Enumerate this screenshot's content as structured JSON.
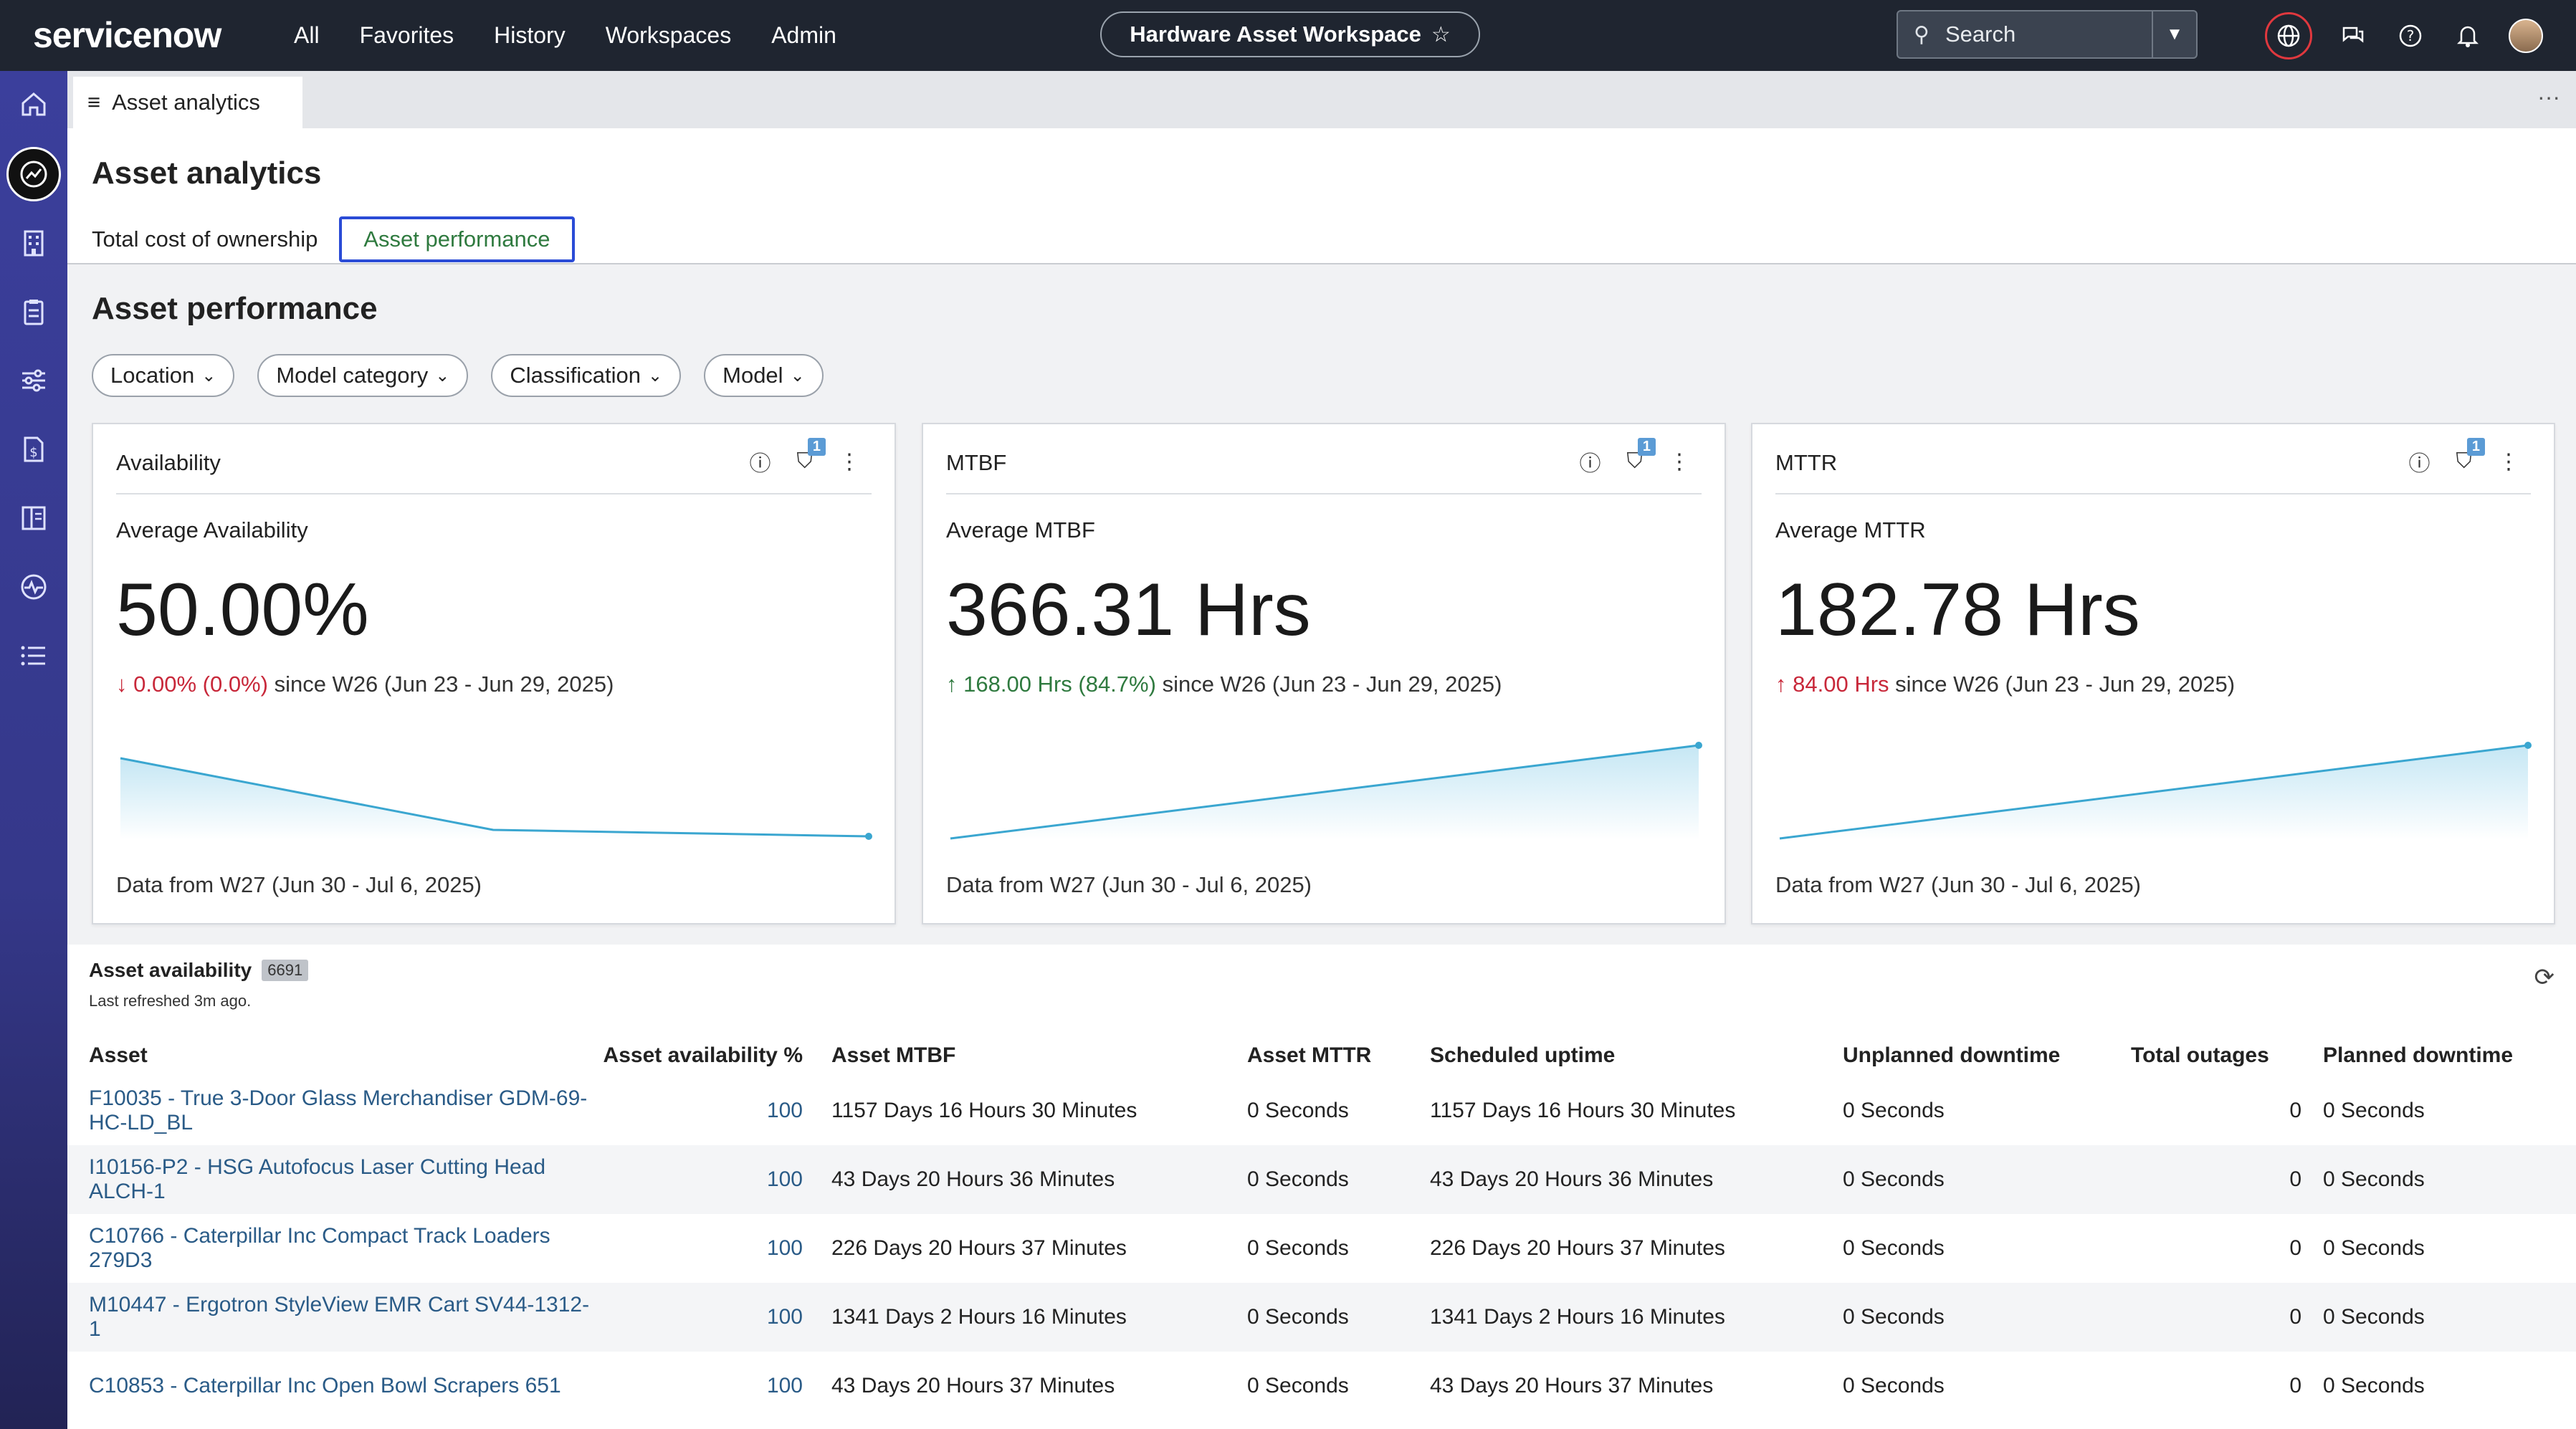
{
  "topbar": {
    "logo": "servicenow",
    "nav": [
      "All",
      "Favorites",
      "History",
      "Workspaces",
      "Admin"
    ],
    "workspace_title": "Hardware Asset Workspace",
    "search_placeholder": "Search"
  },
  "tabstrip": {
    "tab_label": "Asset analytics"
  },
  "header": {
    "title": "Asset analytics",
    "tabs": [
      "Total cost of ownership",
      "Asset performance"
    ]
  },
  "section": {
    "title": "Asset performance",
    "filters": [
      "Location",
      "Model category",
      "Classification",
      "Model"
    ]
  },
  "cards": [
    {
      "title": "Availability",
      "filter_count": "1",
      "label": "Average Availability",
      "value": "50.00%",
      "delta_arrow": "↓",
      "delta": "0.00% (0.0%)",
      "since": "since W26 (Jun 23 - Jun 29, 2025)",
      "footer": "Data from W27 (Jun 30 - Jul 6, 2025)",
      "trend": "down"
    },
    {
      "title": "MTBF",
      "filter_count": "1",
      "label": "Average MTBF",
      "value": "366.31 Hrs",
      "delta_arrow": "↑",
      "delta": "168.00 Hrs (84.7%)",
      "since": "since W26 (Jun 23 - Jun 29, 2025)",
      "footer": "Data from W27 (Jun 30 - Jul 6, 2025)",
      "trend": "up"
    },
    {
      "title": "MTTR",
      "filter_count": "1",
      "label": "Average MTTR",
      "value": "182.78 Hrs",
      "delta_arrow": "↑",
      "delta": "84.00 Hrs",
      "since": " since W26 (Jun 23 - Jun 29, 2025)",
      "footer": "Data from W27 (Jun 30 - Jul 6, 2025)",
      "trend": "up"
    }
  ],
  "table": {
    "title": "Asset availability",
    "count": "6691",
    "refreshed": "Last refreshed 3m ago.",
    "columns": [
      "Asset",
      "Asset availability %",
      "Asset MTBF",
      "Asset MTTR",
      "Scheduled uptime",
      "Unplanned downtime",
      "Total outages",
      "Planned downtime"
    ],
    "rows": [
      {
        "asset": "F10035 - True 3-Door Glass Merchandiser GDM-69-HC-LD_BL",
        "availability": "100",
        "mtbf": "1157 Days 16 Hours 30 Minutes",
        "mttr": "0 Seconds",
        "uptime": "1157 Days 16 Hours 30 Minutes",
        "unplanned": "0 Seconds",
        "outages": "0",
        "planned": "0 Seconds"
      },
      {
        "asset": "I10156-P2 - HSG Autofocus Laser Cutting Head ALCH-1",
        "availability": "100",
        "mtbf": "43 Days 20 Hours 36 Minutes",
        "mttr": "0 Seconds",
        "uptime": "43 Days 20 Hours 36 Minutes",
        "unplanned": "0 Seconds",
        "outages": "0",
        "planned": "0 Seconds"
      },
      {
        "asset": "C10766 - Caterpillar Inc Compact Track Loaders 279D3",
        "availability": "100",
        "mtbf": "226 Days 20 Hours 37 Minutes",
        "mttr": "0 Seconds",
        "uptime": "226 Days 20 Hours 37 Minutes",
        "unplanned": "0 Seconds",
        "outages": "0",
        "planned": "0 Seconds"
      },
      {
        "asset": "M10447 - Ergotron StyleView EMR Cart SV44-1312-1",
        "availability": "100",
        "mtbf": "1341 Days 2 Hours 16 Minutes",
        "mttr": "0 Seconds",
        "uptime": "1341 Days 2 Hours 16 Minutes",
        "unplanned": "0 Seconds",
        "outages": "0",
        "planned": "0 Seconds"
      },
      {
        "asset": "C10853 - Caterpillar Inc Open Bowl Scrapers 651",
        "availability": "100",
        "mtbf": "43 Days 20 Hours 37 Minutes",
        "mttr": "0 Seconds",
        "uptime": "43 Days 20 Hours 37 Minutes",
        "unplanned": "0 Seconds",
        "outages": "0",
        "planned": "0 Seconds"
      }
    ]
  },
  "icons": {
    "sidebar": [
      "home-icon",
      "analytics-icon",
      "building-icon",
      "clipboard-icon",
      "sliders-icon",
      "finance-icon",
      "catalog-icon",
      "pulse-icon",
      "list-icon"
    ],
    "topbar": [
      "globe-icon",
      "chat-icon",
      "help-icon",
      "bell-icon",
      "avatar"
    ]
  },
  "colors": {
    "accent": "#2a4bd6",
    "sparkline": "#3aa6d0",
    "down": "#c8283a",
    "up": "#2f7a3f"
  }
}
